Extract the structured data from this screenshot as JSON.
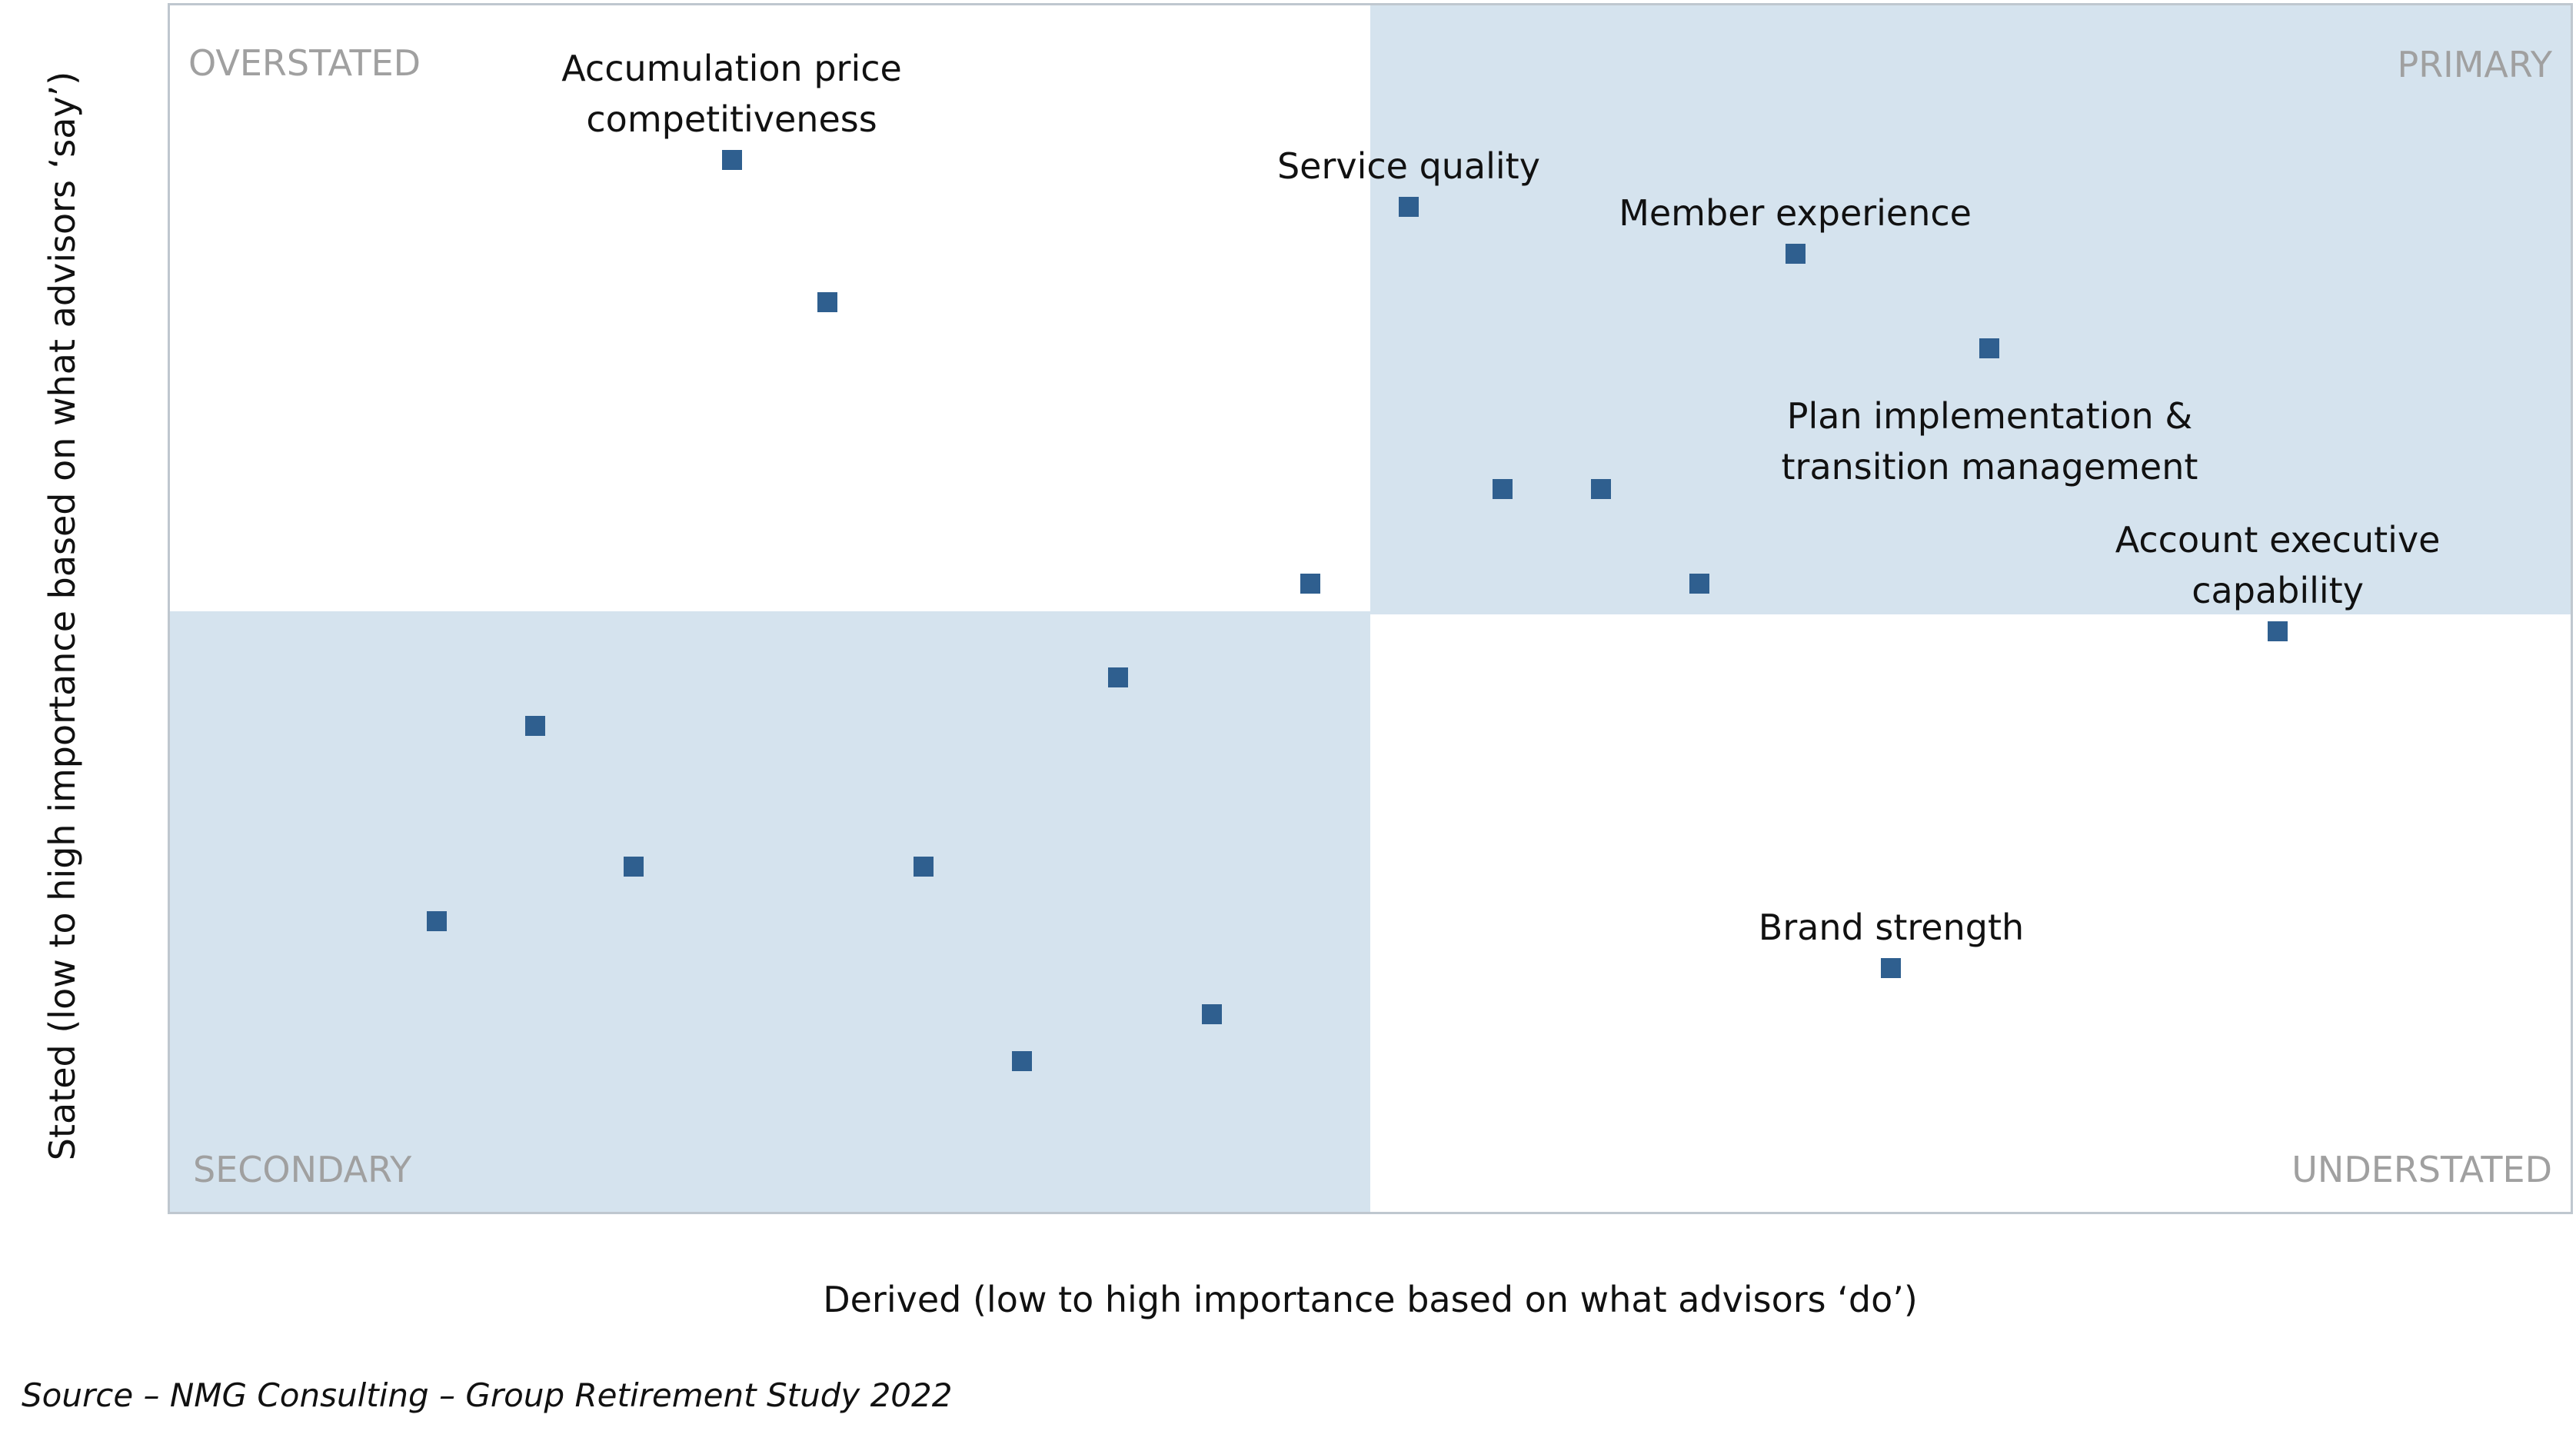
{
  "chart_data": {
    "type": "scatter",
    "x_label": "Derived (low to high importance based on what advisors ‘do’)",
    "y_label": "Stated (low to high importance based on what advisors ‘say’)",
    "source": "Source – NMG Consulting – Group Retirement Study 2022",
    "quadrant_labels": {
      "top_left": "OVERSTATED",
      "top_right": "PRIMARY",
      "bottom_left": "SECONDARY",
      "bottom_right": "UNDERSTATED"
    },
    "color": "#2f5f8f",
    "xlim": [
      0,
      100
    ],
    "ylim": [
      0,
      100
    ],
    "x": [
      23.4,
      27.4,
      51.6,
      67.7,
      75.8,
      55.5,
      59.6,
      47.5,
      63.7,
      87.8,
      39.5,
      15.2,
      19.3,
      31.4,
      11.1,
      71.7,
      43.4,
      35.5
    ],
    "y": [
      87.2,
      75.4,
      83.3,
      79.4,
      71.6,
      59.9,
      59.9,
      52.1,
      52.1,
      48.1,
      44.3,
      40.3,
      28.6,
      28.6,
      24.1,
      20.2,
      16.4,
      12.5
    ],
    "point_labels": [
      "Accumulation price competitiveness",
      null,
      "Service quality",
      "Member experience",
      "Plan implementation & transition management",
      null,
      null,
      null,
      null,
      "Account executive capability",
      null,
      null,
      null,
      null,
      null,
      "Brand strength",
      null,
      null
    ]
  }
}
